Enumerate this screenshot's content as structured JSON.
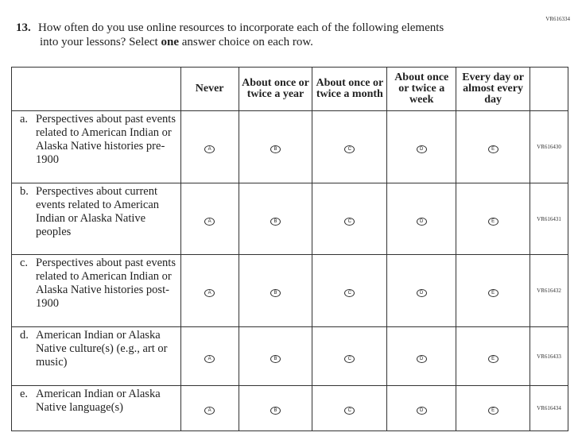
{
  "page_id": "VR616334",
  "question": {
    "number": "13.",
    "line1": "How often do you use online resources to incorporate each of the following elements",
    "line2_pre": "into your lessons? Select ",
    "line2_bold": "one",
    "line2_post": " answer choice on each row."
  },
  "columns": [
    "Never",
    "About once or twice a year",
    "About once or twice a month",
    "About once or twice a week",
    "Every day or almost every day"
  ],
  "bubbles": [
    "A",
    "B",
    "C",
    "D",
    "E"
  ],
  "rows": [
    {
      "letter": "a.",
      "text": "Perspectives about past events related to American Indian or Alaska Native histories pre-1900",
      "id": "VR616430"
    },
    {
      "letter": "b.",
      "text": "Perspectives about current events related to American Indian or Alaska Native peoples",
      "id": "VR616431"
    },
    {
      "letter": "c.",
      "text": "Perspectives about past events related to American Indian or Alaska Native histories post-1900",
      "id": "VR616432"
    },
    {
      "letter": "d.",
      "text": "American Indian or Alaska Native culture(s) (e.g., art or music)",
      "id": "VR616433"
    },
    {
      "letter": "e.",
      "text": "American Indian or Alaska Native language(s)",
      "id": "VR616434"
    }
  ]
}
